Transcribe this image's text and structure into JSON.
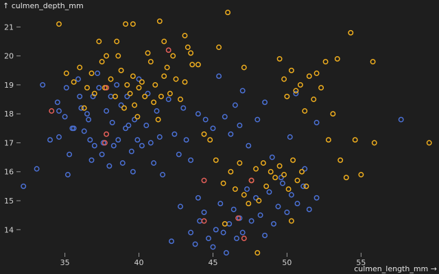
{
  "chart_data": {
    "type": "scatter",
    "xlabel": "culmen_length_mm →",
    "ylabel": "↑ culmen_depth_mm",
    "xlim": [
      32.1,
      59.8
    ],
    "ylim": [
      12.8,
      21.6
    ],
    "x_ticks": [
      35,
      40,
      45,
      50,
      55
    ],
    "y_ticks": [
      14,
      15,
      16,
      17,
      18,
      19,
      20,
      21
    ],
    "grid": false,
    "colors": {
      "blue": "#4c72d8",
      "yellow": "#f2b01e",
      "red": "#e8605a"
    },
    "series": [
      {
        "color": "blue",
        "points": [
          [
            32.2,
            15.5
          ],
          [
            33.1,
            16.1
          ],
          [
            33.5,
            19.0
          ],
          [
            34.0,
            17.1
          ],
          [
            34.5,
            18.4
          ],
          [
            34.6,
            18.1
          ],
          [
            34.6,
            17.2
          ],
          [
            35.0,
            17.9
          ],
          [
            35.1,
            18.9
          ],
          [
            35.2,
            15.9
          ],
          [
            35.3,
            16.6
          ],
          [
            35.5,
            17.5
          ],
          [
            35.6,
            17.5
          ],
          [
            35.9,
            19.2
          ],
          [
            36.0,
            18.6
          ],
          [
            36.1,
            18.2
          ],
          [
            36.3,
            17.4
          ],
          [
            36.5,
            18.0
          ],
          [
            36.6,
            17.8
          ],
          [
            36.7,
            17.1
          ],
          [
            36.8,
            16.4
          ],
          [
            36.9,
            18.6
          ],
          [
            37.0,
            16.9
          ],
          [
            37.2,
            19.4
          ],
          [
            37.3,
            18.9
          ],
          [
            37.5,
            16.6
          ],
          [
            37.6,
            17.0
          ],
          [
            37.8,
            18.1
          ],
          [
            38.0,
            16.2
          ],
          [
            38.1,
            18.6
          ],
          [
            38.2,
            17.7
          ],
          [
            38.3,
            16.9
          ],
          [
            38.5,
            19.0
          ],
          [
            38.6,
            17.1
          ],
          [
            38.8,
            18.3
          ],
          [
            38.9,
            16.3
          ],
          [
            39.1,
            17.5
          ],
          [
            39.2,
            18.6
          ],
          [
            39.3,
            17.6
          ],
          [
            39.5,
            16.7
          ],
          [
            39.6,
            16.0
          ],
          [
            39.7,
            17.8
          ],
          [
            39.9,
            17.1
          ],
          [
            40.0,
            19.2
          ],
          [
            40.2,
            16.9
          ],
          [
            40.5,
            17.6
          ],
          [
            40.6,
            18.7
          ],
          [
            40.8,
            17.0
          ],
          [
            41.0,
            16.3
          ],
          [
            41.2,
            18.1
          ],
          [
            41.4,
            17.2
          ],
          [
            41.6,
            15.9
          ],
          [
            42.0,
            18.5
          ],
          [
            42.4,
            17.3
          ],
          [
            42.7,
            16.6
          ],
          [
            43.0,
            18.2
          ],
          [
            43.2,
            17.1
          ],
          [
            43.5,
            16.4
          ],
          [
            44.0,
            18.0
          ],
          [
            44.5,
            17.8
          ],
          [
            45.0,
            17.5
          ],
          [
            45.4,
            19.3
          ],
          [
            45.8,
            17.9
          ],
          [
            46.2,
            17.3
          ],
          [
            46.5,
            18.3
          ],
          [
            46.8,
            17.6
          ],
          [
            47.0,
            18.8
          ],
          [
            47.4,
            16.9
          ],
          [
            48.0,
            17.8
          ],
          [
            48.5,
            18.4
          ],
          [
            49.0,
            16.5
          ],
          [
            49.6,
            15.8
          ],
          [
            50.2,
            17.2
          ],
          [
            50.6,
            18.7
          ],
          [
            51.2,
            16.1
          ],
          [
            52.0,
            17.7
          ],
          [
            57.7,
            17.8
          ],
          [
            42.8,
            14.8
          ],
          [
            43.5,
            13.9
          ],
          [
            43.8,
            13.5
          ],
          [
            44.1,
            14.3
          ],
          [
            44.4,
            14.6
          ],
          [
            44.7,
            13.7
          ],
          [
            45.0,
            13.4
          ],
          [
            45.2,
            14.0
          ],
          [
            45.5,
            14.9
          ],
          [
            45.7,
            13.9
          ],
          [
            45.9,
            13.2
          ],
          [
            46.1,
            14.2
          ],
          [
            46.4,
            14.7
          ],
          [
            46.6,
            13.7
          ],
          [
            46.8,
            14.4
          ],
          [
            47.0,
            13.9
          ],
          [
            47.3,
            15.4
          ],
          [
            47.6,
            14.3
          ],
          [
            47.9,
            15.1
          ],
          [
            48.2,
            14.5
          ],
          [
            48.5,
            13.8
          ],
          [
            48.8,
            15.3
          ],
          [
            49.1,
            14.2
          ],
          [
            49.4,
            14.8
          ],
          [
            49.7,
            15.6
          ],
          [
            50.0,
            14.6
          ],
          [
            50.3,
            15.2
          ],
          [
            50.7,
            14.9
          ],
          [
            51.1,
            15.5
          ],
          [
            51.5,
            14.7
          ],
          [
            52.0,
            15.1
          ],
          [
            42.2,
            13.6
          ],
          [
            44.0,
            15.1
          ]
        ]
      },
      {
        "color": "yellow",
        "points": [
          [
            34.6,
            21.1
          ],
          [
            35.1,
            19.4
          ],
          [
            35.6,
            19.1
          ],
          [
            36.0,
            19.6
          ],
          [
            36.3,
            18.2
          ],
          [
            36.5,
            18.9
          ],
          [
            36.8,
            19.4
          ],
          [
            37.0,
            18.7
          ],
          [
            37.3,
            20.5
          ],
          [
            37.5,
            19.8
          ],
          [
            37.7,
            18.9
          ],
          [
            37.8,
            20.0
          ],
          [
            38.1,
            19.2
          ],
          [
            38.4,
            18.6
          ],
          [
            38.6,
            20.0
          ],
          [
            38.8,
            19.5
          ],
          [
            39.0,
            18.2
          ],
          [
            39.2,
            19.0
          ],
          [
            39.4,
            18.7
          ],
          [
            39.6,
            19.3
          ],
          [
            39.7,
            18.3
          ],
          [
            39.9,
            17.9
          ],
          [
            40.2,
            19.1
          ],
          [
            40.4,
            18.6
          ],
          [
            40.6,
            20.1
          ],
          [
            40.8,
            19.8
          ],
          [
            41.0,
            18.4
          ],
          [
            41.1,
            19.0
          ],
          [
            41.3,
            17.8
          ],
          [
            41.5,
            18.6
          ],
          [
            41.7,
            19.3
          ],
          [
            41.9,
            19.6
          ],
          [
            42.1,
            18.7
          ],
          [
            42.3,
            20.0
          ],
          [
            42.5,
            19.2
          ],
          [
            42.8,
            18.5
          ],
          [
            43.1,
            19.1
          ],
          [
            43.3,
            20.3
          ],
          [
            43.6,
            19.7
          ],
          [
            44.0,
            19.7
          ],
          [
            44.4,
            17.3
          ],
          [
            44.8,
            17.1
          ],
          [
            45.2,
            16.4
          ],
          [
            45.4,
            20.3
          ],
          [
            45.7,
            15.6
          ],
          [
            46.0,
            21.5
          ],
          [
            46.2,
            16.0
          ],
          [
            46.5,
            15.4
          ],
          [
            46.8,
            16.3
          ],
          [
            47.1,
            15.2
          ],
          [
            47.4,
            14.9
          ],
          [
            47.6,
            15.7
          ],
          [
            47.9,
            16.1
          ],
          [
            48.1,
            15.0
          ],
          [
            48.4,
            16.3
          ],
          [
            48.6,
            15.5
          ],
          [
            48.9,
            16.0
          ],
          [
            49.2,
            15.8
          ],
          [
            49.5,
            16.2
          ],
          [
            49.8,
            15.9
          ],
          [
            50.1,
            15.4
          ],
          [
            50.4,
            16.4
          ],
          [
            50.7,
            15.7
          ],
          [
            51.0,
            16.0
          ],
          [
            51.3,
            15.5
          ],
          [
            49.5,
            19.9
          ],
          [
            49.8,
            19.2
          ],
          [
            50.0,
            18.6
          ],
          [
            50.3,
            19.5
          ],
          [
            50.6,
            18.8
          ],
          [
            50.9,
            19.0
          ],
          [
            51.2,
            18.1
          ],
          [
            51.5,
            19.3
          ],
          [
            51.8,
            18.5
          ],
          [
            52.0,
            19.4
          ],
          [
            52.3,
            18.9
          ],
          [
            52.6,
            19.8
          ],
          [
            52.8,
            17.1
          ],
          [
            53.1,
            18.0
          ],
          [
            53.4,
            19.9
          ],
          [
            53.6,
            16.4
          ],
          [
            54.0,
            15.8
          ],
          [
            54.3,
            20.8
          ],
          [
            54.6,
            17.1
          ],
          [
            55.0,
            15.9
          ],
          [
            55.8,
            19.8
          ],
          [
            55.9,
            17.0
          ],
          [
            59.6,
            17.0
          ],
          [
            45.8,
            14.2
          ],
          [
            48.0,
            13.2
          ],
          [
            50.3,
            14.3
          ],
          [
            47.1,
            19.6
          ],
          [
            40.0,
            18.9
          ],
          [
            39.1,
            21.1
          ],
          [
            39.6,
            21.1
          ],
          [
            41.4,
            21.2
          ],
          [
            43.1,
            20.7
          ],
          [
            43.5,
            20.1
          ],
          [
            41.7,
            20.5
          ],
          [
            38.5,
            20.5
          ]
        ]
      },
      {
        "color": "red",
        "points": [
          [
            34.1,
            18.1
          ],
          [
            37.8,
            18.9
          ],
          [
            37.8,
            17.3
          ],
          [
            37.7,
            17.0
          ],
          [
            42.0,
            20.2
          ],
          [
            44.4,
            15.7
          ],
          [
            44.4,
            14.3
          ],
          [
            46.7,
            14.4
          ],
          [
            47.1,
            13.7
          ],
          [
            47.6,
            15.7
          ]
        ]
      }
    ]
  }
}
